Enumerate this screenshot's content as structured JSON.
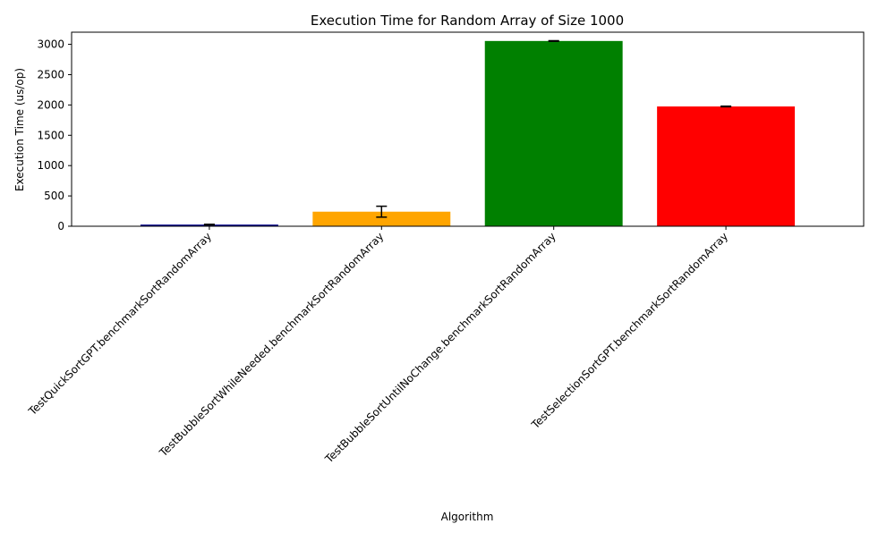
{
  "chart_data": {
    "type": "bar",
    "title": "Execution Time for Random Array of Size 1000",
    "xlabel": "Algorithm",
    "ylabel": "Execution Time (us/op)",
    "ylim": [
      0,
      3200
    ],
    "yticks": [
      0,
      500,
      1000,
      1500,
      2000,
      2500,
      3000
    ],
    "grid": false,
    "legend": "none",
    "categories": [
      "TestQuickSortGPT.benchmarkSortRandomArray",
      "TestBubbleSortWhileNeeded.benchmarkSortRandomArray",
      "TestBubbleSortUntilNoChange.benchmarkSortRandomArray",
      "TestSelectionSortGPT.benchmarkSortRandomArray"
    ],
    "values": [
      27,
      240,
      3055,
      1975
    ],
    "errors": [
      5,
      90,
      5,
      5
    ],
    "colors": [
      "#00008b",
      "#ffa500",
      "#008000",
      "#ff0000"
    ]
  }
}
